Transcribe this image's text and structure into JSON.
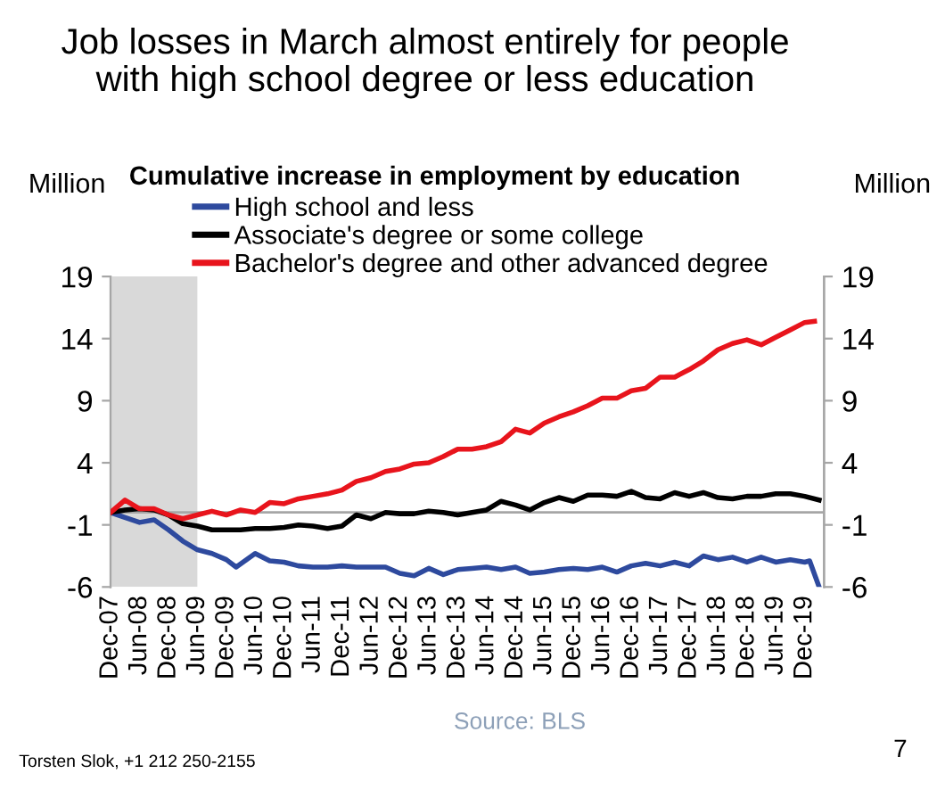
{
  "chart_data": {
    "type": "line",
    "title": "Job losses in March almost entirely for people\nwith high school degree or less education",
    "subtitle": "Cumulative increase in employment by education",
    "ylabel": "Million",
    "y2label": "Million",
    "series": [
      {
        "name": "High school and less",
        "color": "#2e4a9e",
        "x": [
          "2007-12",
          "2008-03",
          "2008-06",
          "2008-09",
          "2008-12",
          "2009-03",
          "2009-06",
          "2009-09",
          "2009-12",
          "2010-02",
          "2010-06",
          "2010-09",
          "2010-12",
          "2011-03",
          "2011-06",
          "2011-09",
          "2011-12",
          "2012-03",
          "2012-06",
          "2012-09",
          "2012-12",
          "2013-03",
          "2013-06",
          "2013-09",
          "2013-12",
          "2014-03",
          "2014-06",
          "2014-09",
          "2014-12",
          "2015-03",
          "2015-06",
          "2015-09",
          "2015-12",
          "2016-03",
          "2016-06",
          "2016-09",
          "2016-12",
          "2017-03",
          "2017-06",
          "2017-09",
          "2017-12",
          "2018-03",
          "2018-06",
          "2018-09",
          "2018-12",
          "2019-03",
          "2019-06",
          "2019-09",
          "2019-12",
          "2020-01",
          "2020-03"
        ],
        "values": [
          0,
          -0.4,
          -0.8,
          -0.6,
          -1.4,
          -2.3,
          -3.0,
          -3.3,
          -3.8,
          -4.4,
          -3.3,
          -3.9,
          -4.0,
          -4.3,
          -4.4,
          -4.4,
          -4.3,
          -4.4,
          -4.4,
          -4.4,
          -4.9,
          -5.1,
          -4.5,
          -5.0,
          -4.6,
          -4.5,
          -4.4,
          -4.6,
          -4.4,
          -4.9,
          -4.8,
          -4.6,
          -4.5,
          -4.6,
          -4.4,
          -4.8,
          -4.3,
          -4.1,
          -4.3,
          -4.0,
          -4.3,
          -3.5,
          -3.8,
          -3.6,
          -4.0,
          -3.6,
          -4.0,
          -3.8,
          -4.0,
          -3.9,
          -6.0
        ]
      },
      {
        "name": "Associate's degree or some college",
        "color": "#000000",
        "x": [
          "2007-12",
          "2008-03",
          "2008-06",
          "2008-09",
          "2008-12",
          "2009-03",
          "2009-06",
          "2009-09",
          "2009-12",
          "2010-03",
          "2010-06",
          "2010-09",
          "2010-12",
          "2011-03",
          "2011-06",
          "2011-09",
          "2011-12",
          "2012-03",
          "2012-06",
          "2012-09",
          "2012-12",
          "2013-03",
          "2013-06",
          "2013-09",
          "2013-12",
          "2014-03",
          "2014-06",
          "2014-09",
          "2014-12",
          "2015-03",
          "2015-06",
          "2015-09",
          "2015-12",
          "2016-03",
          "2016-06",
          "2016-09",
          "2016-12",
          "2017-03",
          "2017-06",
          "2017-09",
          "2017-12",
          "2018-03",
          "2018-06",
          "2018-09",
          "2018-12",
          "2019-03",
          "2019-06",
          "2019-09",
          "2019-12",
          "2020-03"
        ],
        "values": [
          0,
          0.2,
          0.3,
          0.2,
          -0.2,
          -0.9,
          -1.1,
          -1.4,
          -1.4,
          -1.4,
          -1.3,
          -1.3,
          -1.2,
          -1.0,
          -1.1,
          -1.3,
          -1.1,
          -0.2,
          -0.5,
          0,
          -0.1,
          -0.1,
          0.1,
          0,
          -0.2,
          0,
          0.2,
          0.9,
          0.6,
          0.2,
          0.8,
          1.2,
          0.9,
          1.4,
          1.4,
          1.3,
          1.7,
          1.2,
          1.1,
          1.6,
          1.3,
          1.6,
          1.2,
          1.1,
          1.3,
          1.3,
          1.5,
          1.5,
          1.3,
          1.0
        ]
      },
      {
        "name": "Bachelor's degree and other advanced degree",
        "color": "#e8141c",
        "x": [
          "2007-12",
          "2008-03",
          "2008-06",
          "2008-09",
          "2008-12",
          "2009-03",
          "2009-06",
          "2009-09",
          "2009-12",
          "2010-03",
          "2010-06",
          "2010-09",
          "2010-12",
          "2011-03",
          "2011-06",
          "2011-09",
          "2011-12",
          "2012-03",
          "2012-06",
          "2012-09",
          "2012-12",
          "2013-03",
          "2013-06",
          "2013-09",
          "2013-12",
          "2014-03",
          "2014-06",
          "2014-09",
          "2014-12",
          "2015-03",
          "2015-06",
          "2015-09",
          "2015-12",
          "2016-03",
          "2016-06",
          "2016-09",
          "2016-12",
          "2017-03",
          "2017-06",
          "2017-09",
          "2017-12",
          "2018-03",
          "2018-06",
          "2018-09",
          "2018-12",
          "2019-03",
          "2019-06",
          "2019-09",
          "2019-12",
          "2020-02"
        ],
        "values": [
          0,
          1.0,
          0.3,
          0.3,
          -0.2,
          -0.5,
          -0.2,
          0.1,
          -0.2,
          0.2,
          0,
          0.8,
          0.7,
          1.1,
          1.3,
          1.5,
          1.8,
          2.5,
          2.8,
          3.3,
          3.5,
          3.9,
          4.0,
          4.5,
          5.1,
          5.1,
          5.3,
          5.7,
          6.7,
          6.4,
          7.2,
          7.7,
          8.1,
          8.6,
          9.2,
          9.2,
          9.8,
          10.0,
          10.9,
          10.9,
          11.5,
          12.2,
          13.1,
          13.6,
          13.9,
          13.5,
          14.1,
          14.7,
          15.3,
          15.4
        ]
      }
    ],
    "xlim": [
      "2007-12",
      "2020-04"
    ],
    "xticks": [
      {
        "value": "2007-12",
        "label": "Dec-07"
      },
      {
        "value": "2008-06",
        "label": "Jun-08"
      },
      {
        "value": "2008-12",
        "label": "Dec-08"
      },
      {
        "value": "2009-06",
        "label": "Jun-09"
      },
      {
        "value": "2009-12",
        "label": "Dec-09"
      },
      {
        "value": "2010-06",
        "label": "Jun-10"
      },
      {
        "value": "2010-12",
        "label": "Dec-10"
      },
      {
        "value": "2011-06",
        "label": "Jun-11"
      },
      {
        "value": "2011-12",
        "label": "Dec-11"
      },
      {
        "value": "2012-06",
        "label": "Jun-12"
      },
      {
        "value": "2012-12",
        "label": "Dec-12"
      },
      {
        "value": "2013-06",
        "label": "Jun-13"
      },
      {
        "value": "2013-12",
        "label": "Dec-13"
      },
      {
        "value": "2014-06",
        "label": "Jun-14"
      },
      {
        "value": "2014-12",
        "label": "Dec-14"
      },
      {
        "value": "2015-06",
        "label": "Jun-15"
      },
      {
        "value": "2015-12",
        "label": "Dec-15"
      },
      {
        "value": "2016-06",
        "label": "Jun-16"
      },
      {
        "value": "2016-12",
        "label": "Dec-16"
      },
      {
        "value": "2017-06",
        "label": "Jun-17"
      },
      {
        "value": "2017-12",
        "label": "Dec-17"
      },
      {
        "value": "2018-06",
        "label": "Jun-18"
      },
      {
        "value": "2018-12",
        "label": "Dec-18"
      },
      {
        "value": "2019-06",
        "label": "Jun-19"
      },
      {
        "value": "2019-12",
        "label": "Dec-19"
      }
    ],
    "ylim": [
      -6,
      19
    ],
    "yticks": [
      -6,
      -1,
      4,
      9,
      14,
      19
    ],
    "y2lim": [
      -6,
      19
    ],
    "y2ticks": [
      -6,
      -1,
      4,
      9,
      14,
      19
    ],
    "bands": [
      {
        "axis": "x",
        "from": "2007-12",
        "to": "2009-06",
        "color": "#d9d9d9"
      }
    ],
    "ref_lines": [
      {
        "axis": "y",
        "value": 0,
        "color": "#a6a6a6"
      }
    ],
    "legend": "top",
    "grid": false,
    "marker": "none",
    "line_style": "solid",
    "annotations": [
      "Source: BLS",
      "Torsten Slok, +1 212 250-2155",
      "7"
    ]
  }
}
